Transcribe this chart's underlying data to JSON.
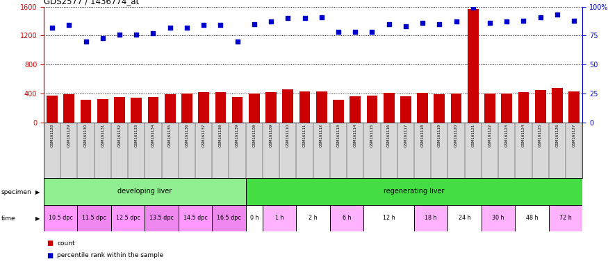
{
  "title": "GDS2577 / 1436774_at",
  "samples": [
    "GSM161128",
    "GSM161129",
    "GSM161130",
    "GSM161131",
    "GSM161132",
    "GSM161133",
    "GSM161134",
    "GSM161135",
    "GSM161136",
    "GSM161137",
    "GSM161138",
    "GSM161139",
    "GSM161108",
    "GSM161109",
    "GSM161110",
    "GSM161111",
    "GSM161112",
    "GSM161113",
    "GSM161114",
    "GSM161115",
    "GSM161116",
    "GSM161117",
    "GSM161118",
    "GSM161119",
    "GSM161120",
    "GSM161121",
    "GSM161122",
    "GSM161123",
    "GSM161124",
    "GSM161125",
    "GSM161126",
    "GSM161127"
  ],
  "counts": [
    370,
    390,
    310,
    320,
    350,
    340,
    350,
    390,
    395,
    415,
    420,
    350,
    400,
    415,
    460,
    430,
    430,
    315,
    365,
    370,
    410,
    360,
    410,
    390,
    395,
    1570,
    395,
    400,
    415,
    450,
    480,
    430
  ],
  "percentile": [
    82,
    84,
    70,
    73,
    76,
    76,
    77,
    82,
    82,
    84,
    84,
    70,
    85,
    87,
    90,
    90,
    91,
    78,
    78,
    78,
    85,
    83,
    86,
    85,
    87,
    99,
    86,
    87,
    88,
    91,
    93,
    88
  ],
  "specimen_groups": [
    {
      "label": "developing liver",
      "start": 0,
      "end": 12,
      "color": "#90EE90"
    },
    {
      "label": "regenerating liver",
      "start": 12,
      "end": 32,
      "color": "#44DD44"
    }
  ],
  "time_groups": [
    {
      "label": "10.5 dpc",
      "start": 0,
      "end": 2,
      "color": "#FF99FF"
    },
    {
      "label": "11.5 dpc",
      "start": 2,
      "end": 4,
      "color": "#EE88EE"
    },
    {
      "label": "12.5 dpc",
      "start": 4,
      "end": 6,
      "color": "#FF99FF"
    },
    {
      "label": "13.5 dpc",
      "start": 6,
      "end": 8,
      "color": "#EE88EE"
    },
    {
      "label": "14.5 dpc",
      "start": 8,
      "end": 10,
      "color": "#FF99FF"
    },
    {
      "label": "16.5 dpc",
      "start": 10,
      "end": 12,
      "color": "#EE88EE"
    },
    {
      "label": "0 h",
      "start": 12,
      "end": 13,
      "color": "#FFFFFF"
    },
    {
      "label": "1 h",
      "start": 13,
      "end": 15,
      "color": "#FFB3FF"
    },
    {
      "label": "2 h",
      "start": 15,
      "end": 17,
      "color": "#FFFFFF"
    },
    {
      "label": "6 h",
      "start": 17,
      "end": 19,
      "color": "#FFB3FF"
    },
    {
      "label": "12 h",
      "start": 19,
      "end": 22,
      "color": "#FFFFFF"
    },
    {
      "label": "18 h",
      "start": 22,
      "end": 24,
      "color": "#FFB3FF"
    },
    {
      "label": "24 h",
      "start": 24,
      "end": 26,
      "color": "#FFFFFF"
    },
    {
      "label": "30 h",
      "start": 26,
      "end": 28,
      "color": "#FFB3FF"
    },
    {
      "label": "48 h",
      "start": 28,
      "end": 30,
      "color": "#FFFFFF"
    },
    {
      "label": "72 h",
      "start": 30,
      "end": 32,
      "color": "#FFB3FF"
    }
  ],
  "bar_color": "#CC0000",
  "dot_color": "#0000CC",
  "ylim_left": [
    0,
    1600
  ],
  "ylim_right": [
    0,
    100
  ],
  "yticks_left": [
    0,
    400,
    800,
    1200,
    1600
  ],
  "yticks_right": [
    0,
    25,
    50,
    75,
    100
  ],
  "bg_color": "#FFFFFF"
}
